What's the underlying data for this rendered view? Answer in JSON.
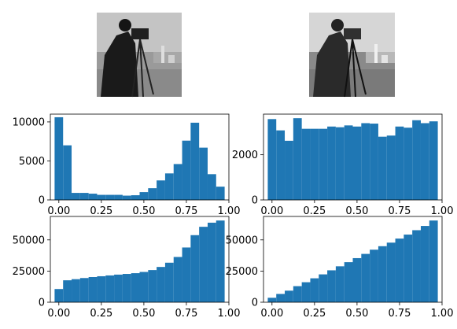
{
  "figure": {
    "images": [
      {
        "name": "original-photo",
        "description": "cameraman grayscale photograph"
      },
      {
        "name": "equalized-photo",
        "description": "cameraman grayscale photograph, histogram equalized"
      }
    ]
  },
  "chart_data": [
    {
      "type": "bar",
      "panel": "histogram-original",
      "x": [
        0.0,
        0.05,
        0.1,
        0.15,
        0.2,
        0.25,
        0.3,
        0.35,
        0.4,
        0.45,
        0.5,
        0.55,
        0.6,
        0.65,
        0.7,
        0.75,
        0.8,
        0.85,
        0.9,
        0.95
      ],
      "values": [
        10600,
        7000,
        900,
        900,
        800,
        650,
        650,
        650,
        550,
        600,
        1000,
        1500,
        2500,
        3400,
        4600,
        7600,
        9900,
        6700,
        3300,
        1700
      ],
      "xlim": [
        -0.05,
        1.0
      ],
      "ylim": [
        0,
        11000
      ],
      "xticks": [
        "0.00",
        "0.25",
        "0.50",
        "0.75",
        "1.00"
      ],
      "yticks": [
        "0",
        "5000",
        "10000"
      ],
      "ytick_values": [
        0,
        5000,
        10000
      ]
    },
    {
      "type": "bar",
      "panel": "histogram-equalized",
      "x": [
        0.0,
        0.05,
        0.1,
        0.15,
        0.2,
        0.25,
        0.3,
        0.35,
        0.4,
        0.45,
        0.5,
        0.55,
        0.6,
        0.65,
        0.7,
        0.75,
        0.8,
        0.85,
        0.9,
        0.95
      ],
      "values": [
        3580,
        3080,
        2620,
        3620,
        3150,
        3150,
        3150,
        3250,
        3220,
        3300,
        3250,
        3400,
        3380,
        2800,
        2850,
        3250,
        3200,
        3530,
        3400,
        3480
      ],
      "xlim": [
        -0.05,
        1.0
      ],
      "ylim": [
        0,
        3800
      ],
      "xticks": [
        "0.00",
        "0.25",
        "0.50",
        "0.75",
        "1.00"
      ],
      "yticks": [
        "0",
        "2000"
      ],
      "ytick_values": [
        0,
        2000
      ]
    },
    {
      "type": "bar",
      "panel": "cumulative-original",
      "x": [
        0.0,
        0.05,
        0.1,
        0.15,
        0.2,
        0.25,
        0.3,
        0.35,
        0.4,
        0.45,
        0.5,
        0.55,
        0.6,
        0.65,
        0.7,
        0.75,
        0.8,
        0.85,
        0.9,
        0.95
      ],
      "values": [
        10600,
        17600,
        18500,
        19400,
        20200,
        20850,
        21500,
        22150,
        22700,
        23300,
        24300,
        25800,
        28300,
        31700,
        36300,
        43900,
        53800,
        60500,
        63800,
        65536
      ],
      "xlim": [
        -0.05,
        1.0
      ],
      "ylim": [
        0,
        68800
      ],
      "xticks": [
        "0.00",
        "0.25",
        "0.50",
        "0.75",
        "1.00"
      ],
      "yticks": [
        "0",
        "25000",
        "50000"
      ],
      "ytick_values": [
        0,
        25000,
        50000
      ]
    },
    {
      "type": "bar",
      "panel": "cumulative-equalized",
      "x": [
        0.0,
        0.05,
        0.1,
        0.15,
        0.2,
        0.25,
        0.3,
        0.35,
        0.4,
        0.45,
        0.5,
        0.55,
        0.6,
        0.65,
        0.7,
        0.75,
        0.8,
        0.85,
        0.9,
        0.95
      ],
      "values": [
        3580,
        6660,
        9280,
        12900,
        16050,
        19200,
        22350,
        25600,
        28820,
        32120,
        35370,
        38770,
        42150,
        44950,
        47800,
        51050,
        54250,
        57780,
        61180,
        65536
      ],
      "xlim": [
        -0.05,
        1.0
      ],
      "ylim": [
        0,
        68800
      ],
      "xticks": [
        "0.00",
        "0.25",
        "0.50",
        "0.75",
        "1.00"
      ],
      "yticks": [
        "0",
        "25000",
        "50000"
      ],
      "ytick_values": [
        0,
        25000,
        50000
      ]
    }
  ]
}
